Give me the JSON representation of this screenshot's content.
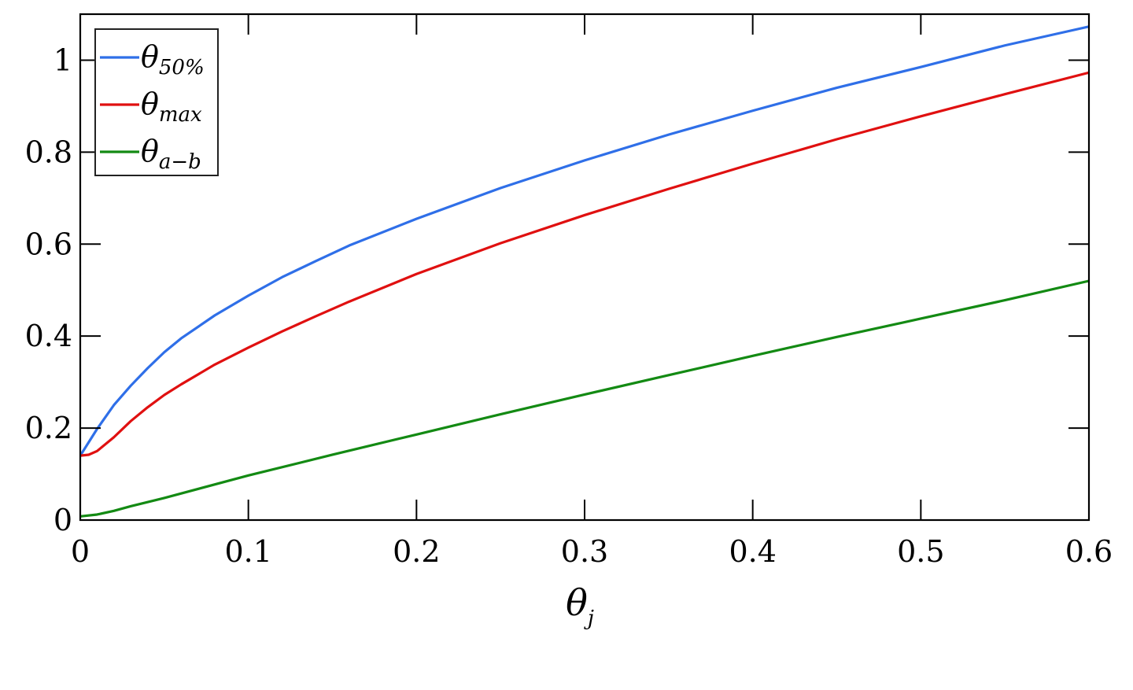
{
  "chart_data": {
    "type": "line",
    "xlabel": {
      "base": "θ",
      "sub": "j"
    },
    "ylabel": "",
    "xlim": [
      0,
      0.6
    ],
    "ylim": [
      0,
      1.1
    ],
    "xticks": [
      "0",
      "0.1",
      "0.2",
      "0.3",
      "0.4",
      "0.5",
      "0.6"
    ],
    "xtick_values": [
      0,
      0.1,
      0.2,
      0.3,
      0.4,
      0.5,
      0.6
    ],
    "yticks": [
      "0",
      "0.2",
      "0.4",
      "0.6",
      "0.8",
      "1"
    ],
    "ytick_values": [
      0,
      0.2,
      0.4,
      0.6,
      0.8,
      1.0
    ],
    "grid": false,
    "legend_position": "top-left",
    "series": [
      {
        "name": {
          "base": "θ",
          "sub": "50%"
        },
        "color": "#2f6fe8",
        "x": [
          0,
          0.01,
          0.02,
          0.03,
          0.04,
          0.05,
          0.06,
          0.08,
          0.1,
          0.12,
          0.14,
          0.16,
          0.2,
          0.25,
          0.3,
          0.35,
          0.4,
          0.45,
          0.5,
          0.55,
          0.6
        ],
        "y": [
          0.14,
          0.198,
          0.25,
          0.292,
          0.33,
          0.365,
          0.395,
          0.445,
          0.488,
          0.528,
          0.563,
          0.597,
          0.655,
          0.722,
          0.782,
          0.838,
          0.89,
          0.94,
          0.985,
          1.032,
          1.073
        ]
      },
      {
        "name": {
          "base": "θ",
          "sub": "max"
        },
        "color": "#e01010",
        "x": [
          0,
          0.005,
          0.01,
          0.02,
          0.03,
          0.04,
          0.05,
          0.06,
          0.08,
          0.1,
          0.12,
          0.14,
          0.16,
          0.2,
          0.25,
          0.3,
          0.35,
          0.4,
          0.45,
          0.5,
          0.55,
          0.6
        ],
        "y": [
          0.14,
          0.142,
          0.15,
          0.18,
          0.215,
          0.245,
          0.272,
          0.295,
          0.338,
          0.375,
          0.41,
          0.443,
          0.475,
          0.535,
          0.602,
          0.663,
          0.72,
          0.775,
          0.828,
          0.878,
          0.926,
          0.973
        ]
      },
      {
        "name": {
          "base": "θ",
          "sub": "a−b"
        },
        "color": "#138a13",
        "x": [
          0,
          0.01,
          0.02,
          0.03,
          0.05,
          0.1,
          0.15,
          0.2,
          0.25,
          0.3,
          0.35,
          0.4,
          0.45,
          0.5,
          0.55,
          0.6
        ],
        "y": [
          0.008,
          0.012,
          0.02,
          0.03,
          0.048,
          0.097,
          0.142,
          0.186,
          0.23,
          0.273,
          0.315,
          0.357,
          0.398,
          0.438,
          0.478,
          0.52
        ]
      }
    ]
  }
}
